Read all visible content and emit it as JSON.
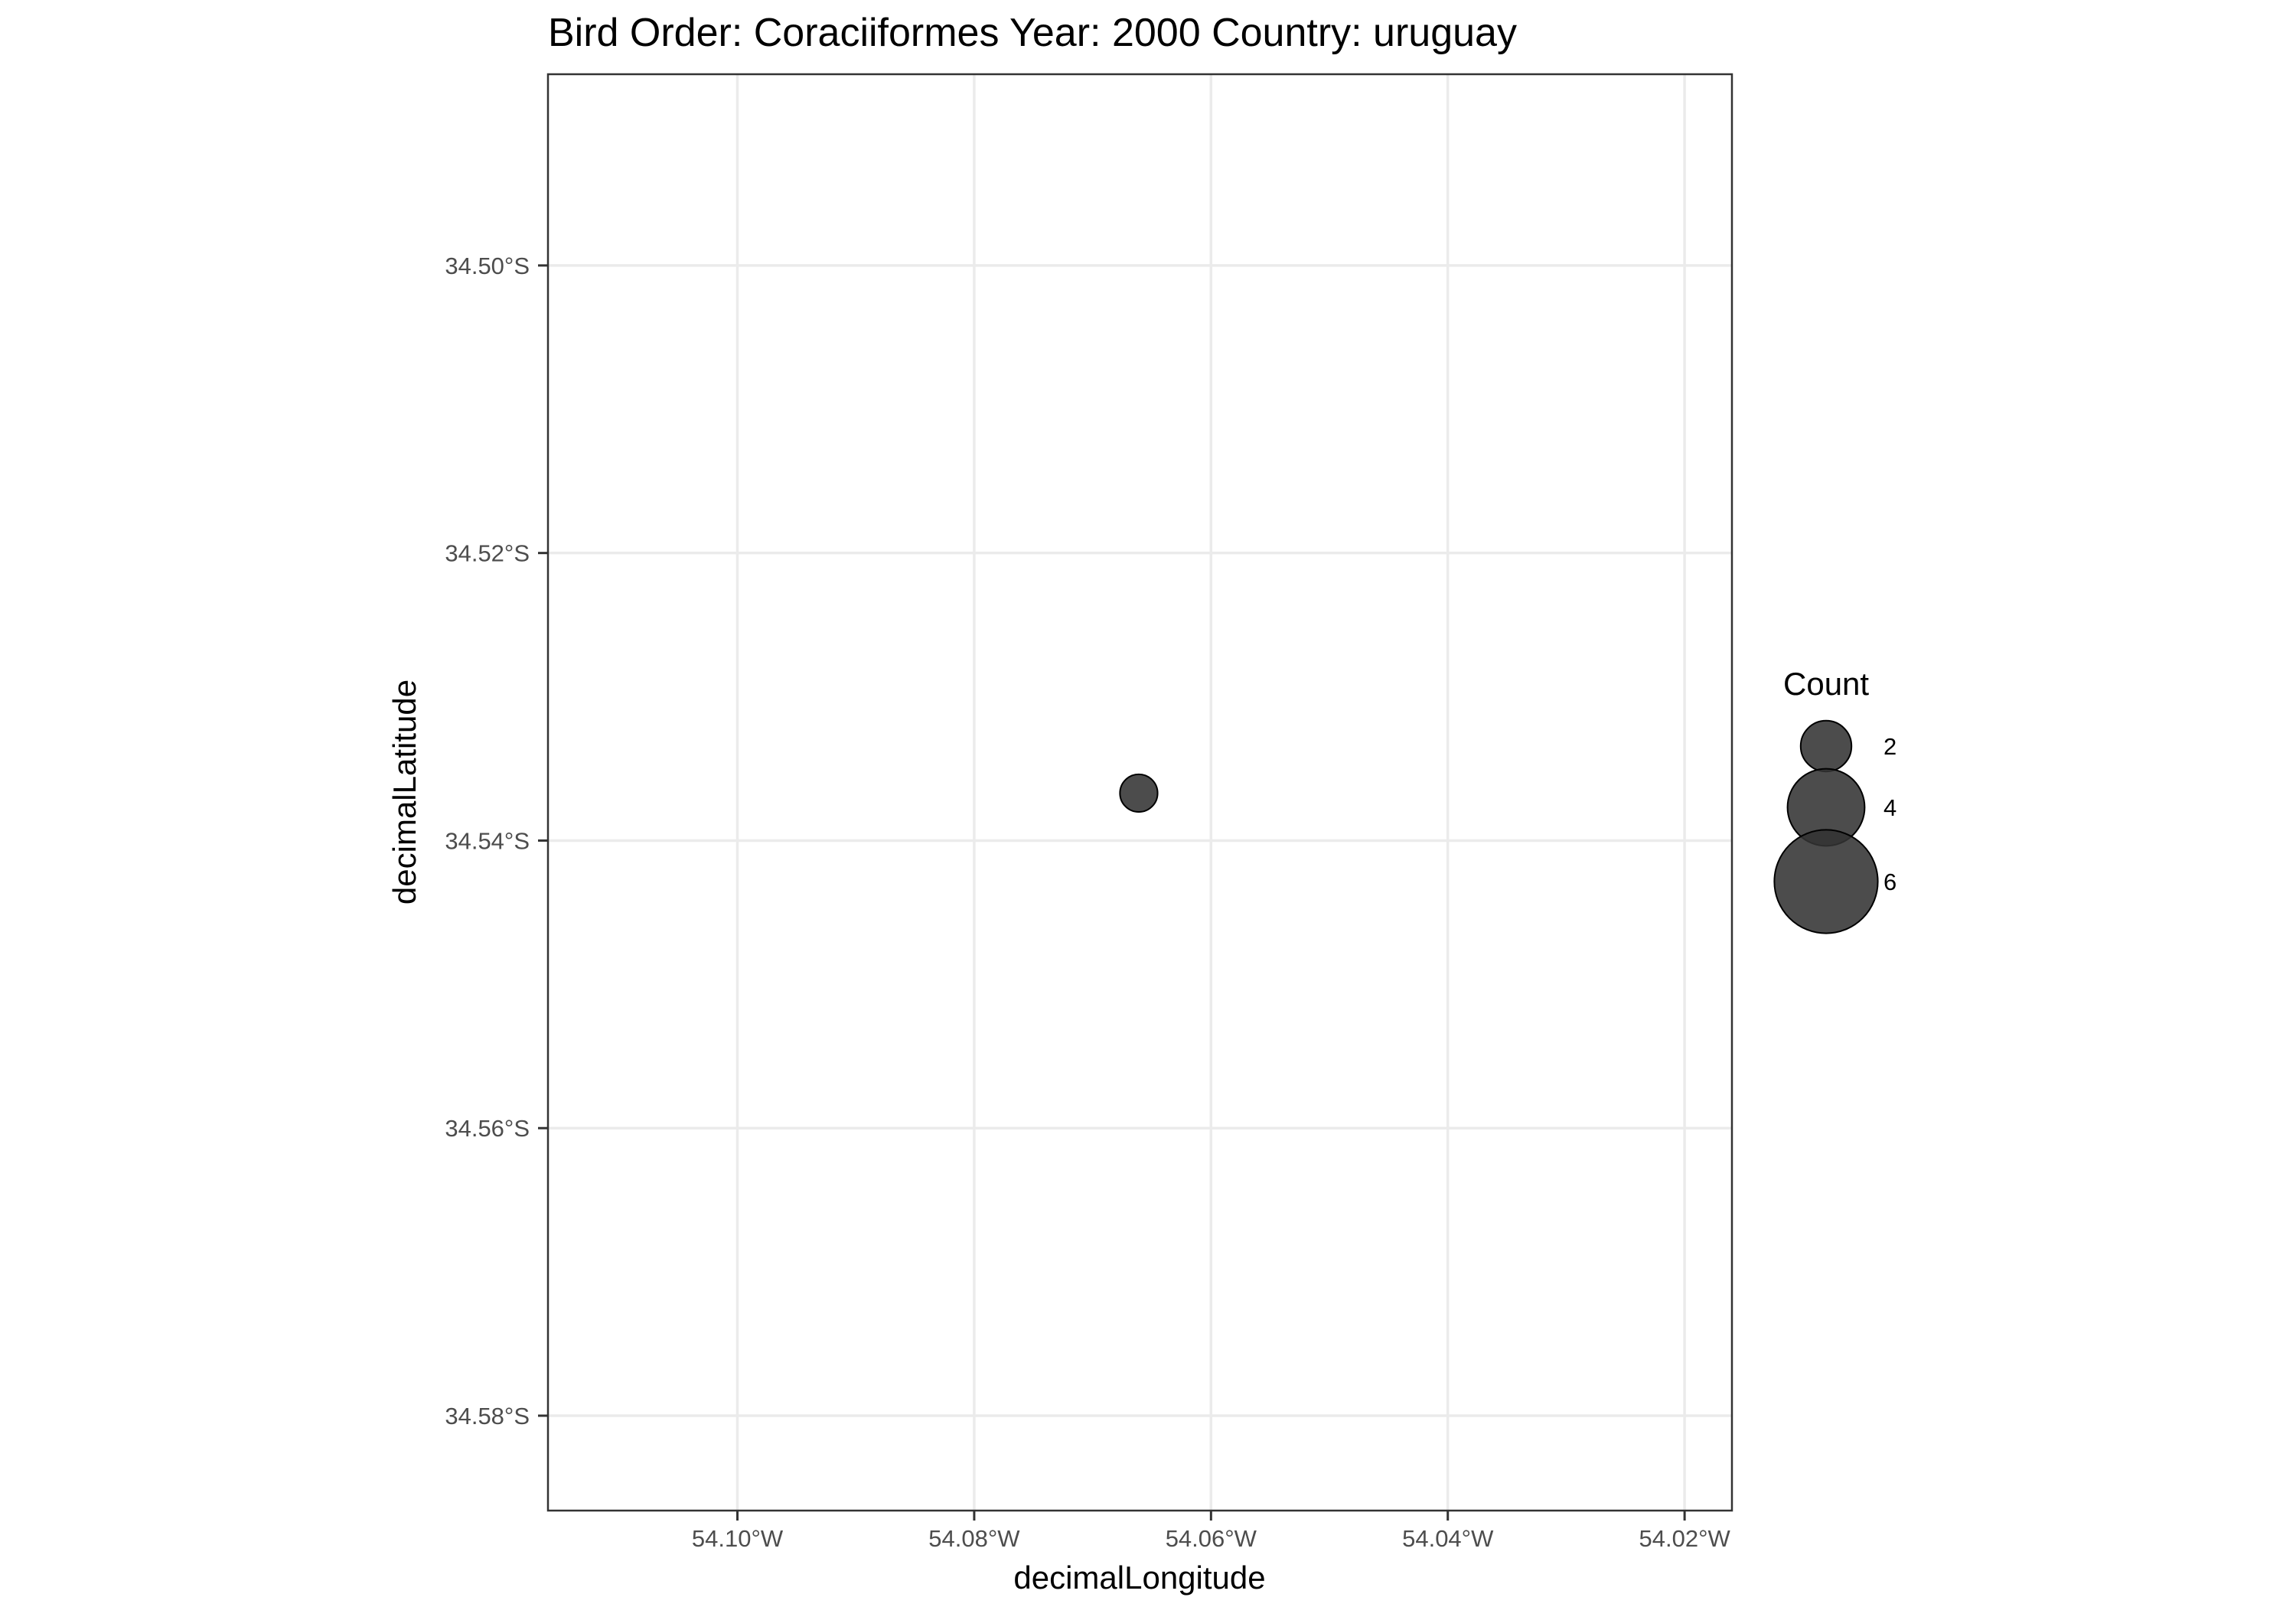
{
  "chart_data": {
    "type": "scatter",
    "title": "Bird Order: Coraciiformes Year: 2000 Country: uruguay",
    "xlabel": "decimalLongitude",
    "ylabel": "decimalLatitude",
    "xlim": [
      -54.116,
      -54.016
    ],
    "ylim": [
      -34.5866,
      -34.4867
    ],
    "x_ticks": [
      {
        "value": -54.1,
        "label": "54.10°W"
      },
      {
        "value": -54.08,
        "label": "54.08°W"
      },
      {
        "value": -54.06,
        "label": "54.06°W"
      },
      {
        "value": -54.04,
        "label": "54.04°W"
      },
      {
        "value": -54.02,
        "label": "54.02°W"
      }
    ],
    "y_ticks": [
      {
        "value": -34.5,
        "label": "34.50°S"
      },
      {
        "value": -34.52,
        "label": "34.52°S"
      },
      {
        "value": -34.54,
        "label": "34.54°S"
      },
      {
        "value": -34.56,
        "label": "34.56°S"
      },
      {
        "value": -34.58,
        "label": "34.58°S"
      }
    ],
    "points": [
      {
        "x": -54.0661,
        "y": -34.5367,
        "count": 1
      }
    ],
    "grid": true,
    "legend": {
      "title": "Count",
      "placement": "right",
      "entries": [
        {
          "value": 2,
          "label": "2"
        },
        {
          "value": 4,
          "label": "4"
        },
        {
          "value": 6,
          "label": "6"
        }
      ]
    },
    "colors": {
      "point_fill": "#333333",
      "point_stroke": "#000000",
      "grid": "#ebebeb",
      "panel_border": "#333333"
    }
  }
}
